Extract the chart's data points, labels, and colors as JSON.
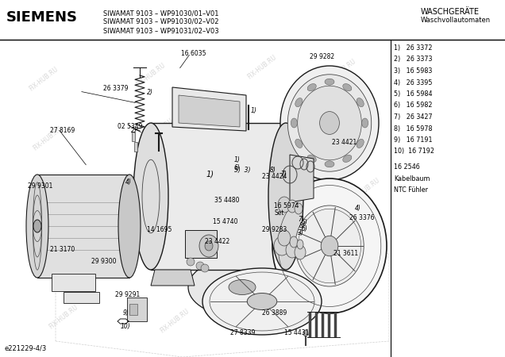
{
  "title_brand": "SIEMENS",
  "header_line1": "SIWAMAT 9103 – WP91030/01–V01",
  "header_line2": "SIWAMAT 9103 – WP91030/02–V02",
  "header_line3": "SIWAMAT 9103 – WP91031/02–V03",
  "header_right1": "WASCHGERÄTE",
  "header_right2": "Waschvollautomaten",
  "bg_color": "#ffffff",
  "text_color": "#000000",
  "line_color": "#1a1a1a",
  "light_gray": "#e8e8e8",
  "mid_gray": "#b0b0b0",
  "dark_gray": "#444444",
  "watermark_color": "#c8c8c8",
  "watermark_text": "FIX-HUB.RU",
  "parts_list": [
    "1)   26 3372",
    "2)   26 3373",
    "3)   16 5983",
    "4)   26 3395",
    "5)   16 5984",
    "6)   16 5982",
    "7)   26 3427",
    "8)   16 5978",
    "9)   16 7191",
    "10)  16 7192"
  ],
  "extra_part1": "16 2546",
  "extra_part2": "Kabelbaum",
  "extra_part3": "NTC Fühler",
  "footer_text": "e221229-4/3"
}
